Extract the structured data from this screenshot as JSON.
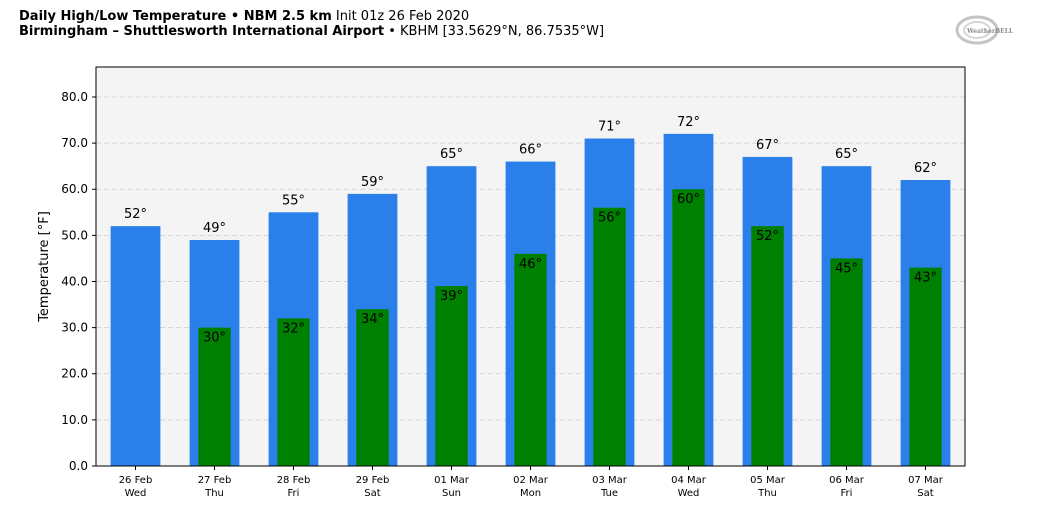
{
  "header": {
    "line1_bold": "Daily High/Low Temperature • NBM 2.5 km",
    "line1_normal": " Init 01z 26 Feb 2020",
    "line2_bold": "Birmingham – Shuttlesworth International Airport",
    "line2_normal": " • KBHM [33.5629°N, 86.7535°W]"
  },
  "logo": {
    "text": "WeatherBELL",
    "color": "#b0b0b0"
  },
  "colors": {
    "high": "#2b7fea",
    "low": "#008000",
    "plot_bg": "#f4f4f4",
    "grid": "#cccccc"
  },
  "chart_data": {
    "type": "bar",
    "ylabel": "Temperature [°F]",
    "ylim": [
      0,
      86.5
    ],
    "yticks": [
      "0.0",
      "10.0",
      "20.0",
      "30.0",
      "40.0",
      "50.0",
      "60.0",
      "70.0",
      "80.0"
    ],
    "grid": true,
    "categories": [
      {
        "date": "26 Feb",
        "day": "Wed"
      },
      {
        "date": "27 Feb",
        "day": "Thu"
      },
      {
        "date": "28 Feb",
        "day": "Fri"
      },
      {
        "date": "29 Feb",
        "day": "Sat"
      },
      {
        "date": "01 Mar",
        "day": "Sun"
      },
      {
        "date": "02 Mar",
        "day": "Mon"
      },
      {
        "date": "03 Mar",
        "day": "Tue"
      },
      {
        "date": "04 Mar",
        "day": "Wed"
      },
      {
        "date": "05 Mar",
        "day": "Thu"
      },
      {
        "date": "06 Mar",
        "day": "Fri"
      },
      {
        "date": "07 Mar",
        "day": "Sat"
      }
    ],
    "highs": [
      52,
      49,
      55,
      59,
      65,
      66,
      71,
      72,
      67,
      65,
      62
    ],
    "lows": [
      null,
      30,
      32,
      34,
      39,
      46,
      56,
      60,
      52,
      45,
      43
    ],
    "high_labels": [
      "52°",
      "49°",
      "55°",
      "59°",
      "65°",
      "66°",
      "71°",
      "72°",
      "67°",
      "65°",
      "62°"
    ],
    "low_labels": [
      null,
      "30°",
      "32°",
      "34°",
      "39°",
      "46°",
      "56°",
      "60°",
      "52°",
      "45°",
      "43°"
    ]
  }
}
